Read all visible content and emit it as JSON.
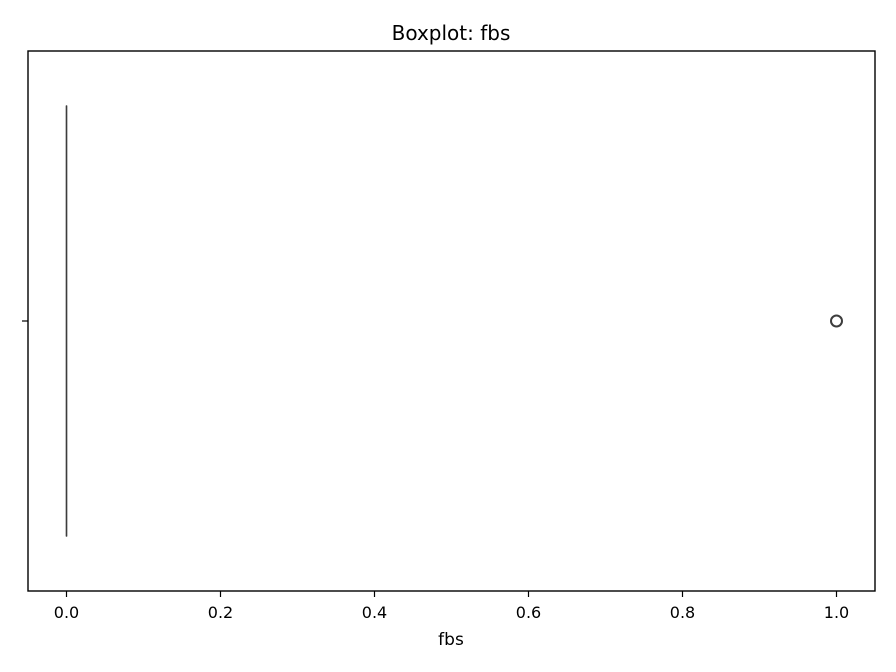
{
  "chart_data": {
    "type": "box",
    "title": "Boxplot: fbs",
    "xlabel": "fbs",
    "ylabel": "",
    "orientation": "horizontal",
    "xlim": [
      -0.05,
      1.05
    ],
    "xticks": [
      0.0,
      0.2,
      0.4,
      0.6,
      0.8,
      1.0
    ],
    "xtick_labels": [
      "0.0",
      "0.2",
      "0.4",
      "0.6",
      "0.8",
      "1.0"
    ],
    "grid": false,
    "box": {
      "q1": 0.0,
      "median": 0.0,
      "q3": 0.0,
      "whisker_low": 0.0,
      "whisker_high": 0.0
    },
    "outliers": [
      1.0
    ],
    "colors": {
      "box_line": "#3d3d3d",
      "outlier_edge": "#3d3d3d",
      "axes": "#000000"
    }
  }
}
